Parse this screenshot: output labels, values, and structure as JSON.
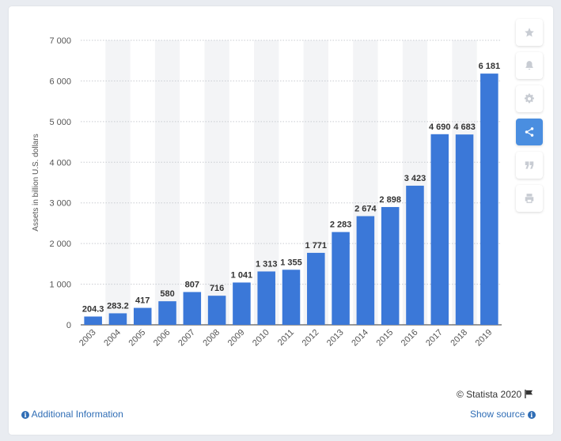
{
  "chart_data": {
    "type": "bar",
    "categories": [
      "2003",
      "2004",
      "2005",
      "2006",
      "2007",
      "2008",
      "2009",
      "2010",
      "2011",
      "2012",
      "2013",
      "2014",
      "2015",
      "2016",
      "2017",
      "2018",
      "2019"
    ],
    "values": [
      204.3,
      283.2,
      417,
      580,
      807,
      716,
      1041,
      1313,
      1355,
      1771,
      2283,
      2674,
      2898,
      3423,
      4690,
      4683,
      6181
    ],
    "value_labels": [
      "204.3",
      "283.2",
      "417",
      "580",
      "807",
      "716",
      "1 041",
      "1 313",
      "1 355",
      "1 771",
      "2 283",
      "2 674",
      "2 898",
      "3 423",
      "4 690",
      "4 683",
      "6 181"
    ],
    "ylabel": "Assets in billion U.S. dollars",
    "ylim": [
      0,
      7000
    ],
    "yticks": [
      0,
      1000,
      2000,
      3000,
      4000,
      5000,
      6000,
      7000
    ],
    "ytick_labels": [
      "0",
      "1 000",
      "2 000",
      "3 000",
      "4 000",
      "5 000",
      "6 000",
      "7 000"
    ],
    "grid": true,
    "bar_color": "#3b78d8"
  },
  "credit": "© Statista 2020",
  "links": {
    "additional_info": "Additional Information",
    "show_source": "Show source"
  },
  "toolbar": [
    "star-icon",
    "bell-icon",
    "gear-icon",
    "share-icon",
    "quote-icon",
    "print-icon"
  ]
}
